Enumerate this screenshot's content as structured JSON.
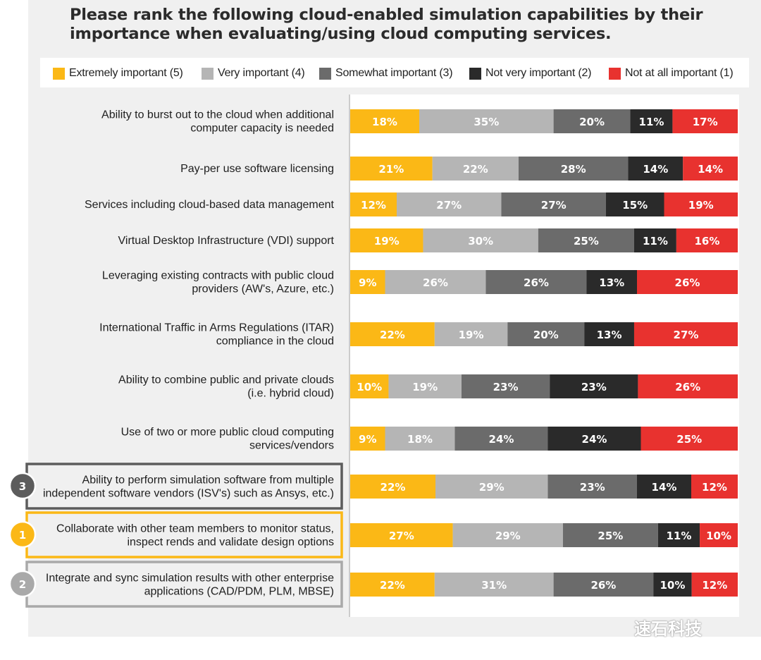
{
  "chart_data": {
    "type": "bar",
    "orientation": "horizontal",
    "stacked": true,
    "title": "Please rank the following cloud-enabled simulation capabilities by their importance when evaluating/using cloud computing services.",
    "legend_position": "top",
    "categories": [
      [
        "Ability to burst out to the cloud when additional",
        "computer capacity is needed"
      ],
      [
        "Pay-per use software licensing"
      ],
      [
        "Services including cloud-based data management"
      ],
      [
        "Virtual Desktop Infrastructure (VDI) support"
      ],
      [
        "Leveraging existing contracts with public cloud",
        "providers (AW's, Azure, etc.)"
      ],
      [
        "International Traffic in Arms Regulations (ITAR)",
        "compliance in the cloud"
      ],
      [
        "Ability to combine public and private clouds",
        "(i.e. hybrid cloud)"
      ],
      [
        "Use of two or more public cloud computing",
        "services/vendors"
      ],
      [
        "Ability to perform simulation software from multiple",
        "independent software vendors (ISV's) such as Ansys, etc.)"
      ],
      [
        "Collaborate with other team members to monitor status,",
        "inspect rends and validate design options"
      ],
      [
        "Integrate and sync simulation results with other enterprise",
        "applications  (CAD/PDM, PLM, MBSE)"
      ]
    ],
    "series": [
      {
        "name": "Extremely important (5)",
        "color": "#fbb816",
        "values": [
          18,
          21,
          12,
          19,
          9,
          22,
          10,
          9,
          22,
          27,
          22
        ]
      },
      {
        "name": "Very important (4)",
        "color": "#b5b5b5",
        "values": [
          35,
          22,
          27,
          30,
          26,
          19,
          19,
          18,
          29,
          29,
          31
        ]
      },
      {
        "name": "Somewhat important (3)",
        "color": "#6b6b6b",
        "values": [
          20,
          28,
          27,
          25,
          26,
          20,
          23,
          24,
          23,
          25,
          26
        ]
      },
      {
        "name": "Not very important (2)",
        "color": "#2a2a2a",
        "values": [
          11,
          14,
          15,
          11,
          13,
          13,
          23,
          24,
          14,
          11,
          10
        ]
      },
      {
        "name": "Not at all important (1)",
        "color": "#e8322f",
        "values": [
          17,
          14,
          19,
          16,
          26,
          27,
          26,
          25,
          12,
          10,
          12
        ]
      }
    ],
    "rank_badges": [
      {
        "category_index": 8,
        "rank": "3",
        "color": "#5c5c5c"
      },
      {
        "category_index": 9,
        "rank": "1",
        "color": "#fbb816"
      },
      {
        "category_index": 10,
        "rank": "2",
        "color": "#a9a9a9"
      }
    ]
  },
  "watermark": "速石科技"
}
